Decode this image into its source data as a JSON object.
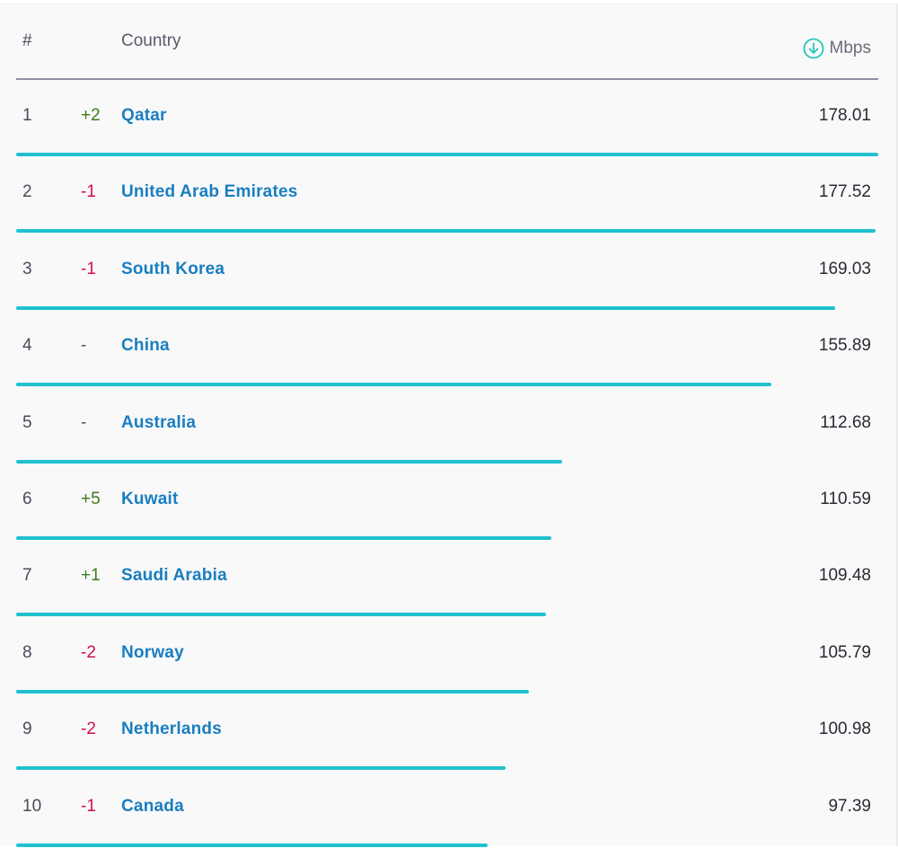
{
  "header": {
    "rank_label": "#",
    "country_label": "Country",
    "unit_label": "Mbps",
    "download_icon": "download-arrow-circle-icon"
  },
  "colors": {
    "bar": "#1fc1cf",
    "positive_change": "#3d7a1a",
    "negative_change": "#d0104c",
    "country_link": "#1a7ec0"
  },
  "max_value": 178.01,
  "rows": [
    {
      "rank": "1",
      "change": "+2",
      "change_dir": "up",
      "country": "Qatar",
      "value": "178.01",
      "speed": 178.01
    },
    {
      "rank": "2",
      "change": "-1",
      "change_dir": "down",
      "country": "United Arab Emirates",
      "value": "177.52",
      "speed": 177.52
    },
    {
      "rank": "3",
      "change": "-1",
      "change_dir": "down",
      "country": "South Korea",
      "value": "169.03",
      "speed": 169.03
    },
    {
      "rank": "4",
      "change": "-",
      "change_dir": "same",
      "country": "China",
      "value": "155.89",
      "speed": 155.89
    },
    {
      "rank": "5",
      "change": "-",
      "change_dir": "same",
      "country": "Australia",
      "value": "112.68",
      "speed": 112.68
    },
    {
      "rank": "6",
      "change": "+5",
      "change_dir": "up",
      "country": "Kuwait",
      "value": "110.59",
      "speed": 110.59
    },
    {
      "rank": "7",
      "change": "+1",
      "change_dir": "up",
      "country": "Saudi Arabia",
      "value": "109.48",
      "speed": 109.48
    },
    {
      "rank": "8",
      "change": "-2",
      "change_dir": "down",
      "country": "Norway",
      "value": "105.79",
      "speed": 105.79
    },
    {
      "rank": "9",
      "change": "-2",
      "change_dir": "down",
      "country": "Netherlands",
      "value": "100.98",
      "speed": 100.98
    },
    {
      "rank": "10",
      "change": "-1",
      "change_dir": "down",
      "country": "Canada",
      "value": "97.39",
      "speed": 97.39
    }
  ]
}
